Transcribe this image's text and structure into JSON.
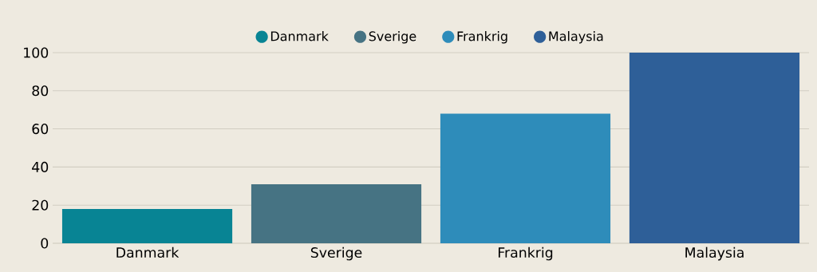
{
  "chart_data": {
    "type": "bar",
    "categories": [
      "Danmark",
      "Sverige",
      "Frankrig",
      "Malaysia"
    ],
    "series": [
      {
        "name": "Danmark",
        "color": "#088494",
        "values": [
          18,
          null,
          null,
          null
        ]
      },
      {
        "name": "Sverige",
        "color": "#467383",
        "values": [
          null,
          31,
          null,
          null
        ]
      },
      {
        "name": "Frankrig",
        "color": "#2e8cba",
        "values": [
          null,
          null,
          68,
          null
        ]
      },
      {
        "name": "Malaysia",
        "color": "#2e5f98",
        "values": [
          null,
          null,
          null,
          100
        ]
      }
    ],
    "ylim": [
      0,
      100
    ],
    "yticks": [
      0,
      20,
      40,
      60,
      80,
      100
    ],
    "grid": "y",
    "legend": "top"
  }
}
